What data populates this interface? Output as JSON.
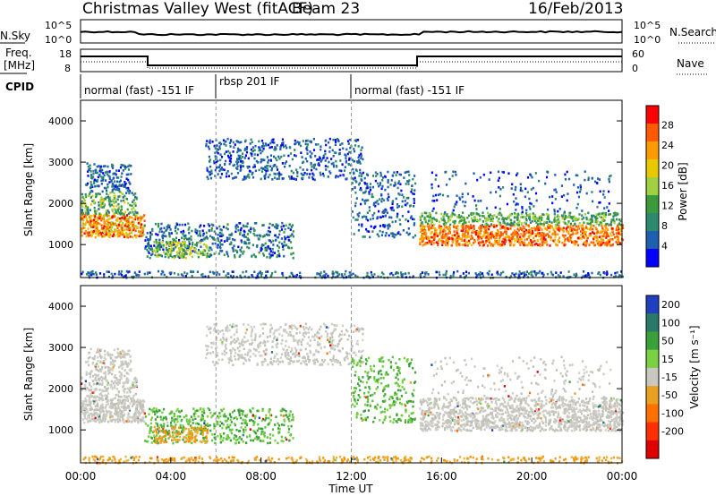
{
  "header": {
    "title": "Christmas Valley West (fitACF)",
    "beam": "Beam 23",
    "date": "16/Feb/2013"
  },
  "nsky_panel": {
    "left_label": "N.Sky",
    "left_ticks": [
      "10^5",
      "10^0"
    ],
    "right_ticks": [
      "10^5",
      "10^0"
    ],
    "right_label": "N.Search"
  },
  "freq_panel": {
    "left_label_1": "Freq.",
    "left_label_2": "[MHz]",
    "left_ticks": [
      "18",
      "8"
    ],
    "right_ticks": [
      "60",
      "0"
    ],
    "right_label": "Nave"
  },
  "cpid": {
    "label": "CPID",
    "segments": [
      {
        "text": "normal (fast) -151 IF",
        "start": 0.0
      },
      {
        "text": "rbsp 201 IF",
        "start": 6.0
      },
      {
        "text": "normal (fast) -151 IF",
        "start": 12.0
      }
    ]
  },
  "chart_data": [
    {
      "type": "heatmap",
      "panel": "power",
      "ylabel": "Slant Range [km]",
      "y_ticks": [
        "4000",
        "3000",
        "2000",
        "1000"
      ],
      "y_tick_values": [
        4000,
        3000,
        2000,
        1000
      ],
      "ylim": [
        200,
        4500
      ],
      "xlim": [
        0,
        24
      ],
      "colorbar": {
        "label": "Power [dB]",
        "ticks": [
          "28",
          "24",
          "20",
          "16",
          "12",
          "8",
          "4"
        ],
        "colors": [
          "#ff0000",
          "#ff5a00",
          "#ff9a00",
          "#e8c800",
          "#9ed040",
          "#3c9a3c",
          "#2e8a6e",
          "#1f5fb0",
          "#0000ff"
        ]
      }
    },
    {
      "type": "heatmap",
      "panel": "velocity",
      "ylabel": "Slant Range [km]",
      "y_ticks": [
        "4000",
        "3000",
        "2000",
        "1000"
      ],
      "y_tick_values": [
        4000,
        3000,
        2000,
        1000
      ],
      "ylim": [
        200,
        4500
      ],
      "xlim": [
        0,
        24
      ],
      "colorbar": {
        "label": "Velocity [m s⁻¹]",
        "ticks": [
          "200",
          "100",
          "50",
          "15",
          "-15",
          "-50",
          "-100",
          "-200"
        ],
        "colors": [
          "#2040c0",
          "#2a7a6a",
          "#3aa03a",
          "#7ad040",
          "#c8c8c0",
          "#e8a020",
          "#ff7000",
          "#ff3000",
          "#e00000"
        ]
      }
    }
  ],
  "x_axis": {
    "label": "Time UT",
    "ticks": [
      "00:00",
      "04:00",
      "08:00",
      "12:00",
      "16:00",
      "20:00",
      "00:00"
    ],
    "tick_values": [
      0,
      4,
      8,
      12,
      16,
      20,
      24
    ]
  }
}
